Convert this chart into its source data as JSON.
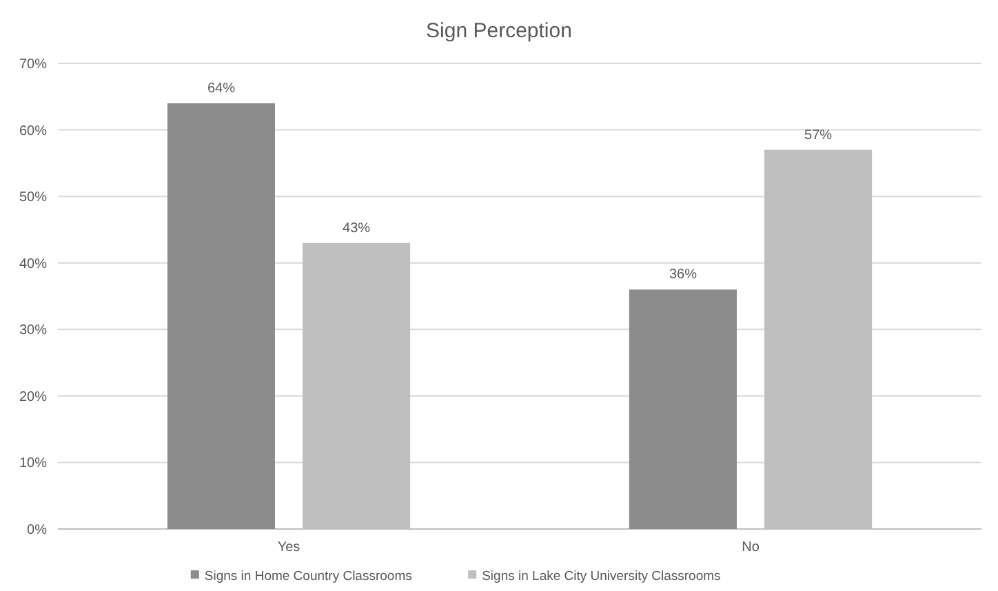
{
  "chart_data": {
    "type": "bar",
    "title": "Sign Perception",
    "categories": [
      "Yes",
      "No"
    ],
    "series": [
      {
        "name": "Signs in Home Country Classrooms",
        "color": "#8c8c8c",
        "values": [
          64,
          36
        ],
        "value_labels": [
          "64%",
          "36%"
        ]
      },
      {
        "name": "Signs in Lake City University Classrooms",
        "color": "#bfbfbf",
        "values": [
          43,
          57
        ],
        "value_labels": [
          "43%",
          "57%"
        ]
      }
    ],
    "ylim": [
      0,
      70
    ],
    "yticks": [
      {
        "value": 0,
        "label": "0%"
      },
      {
        "value": 10,
        "label": "10%"
      },
      {
        "value": 20,
        "label": "20%"
      },
      {
        "value": 30,
        "label": "30%"
      },
      {
        "value": 40,
        "label": "40%"
      },
      {
        "value": 50,
        "label": "50%"
      },
      {
        "value": 60,
        "label": "60%"
      },
      {
        "value": 70,
        "label": "70%"
      }
    ],
    "grid": "y",
    "legend": "bottom"
  }
}
